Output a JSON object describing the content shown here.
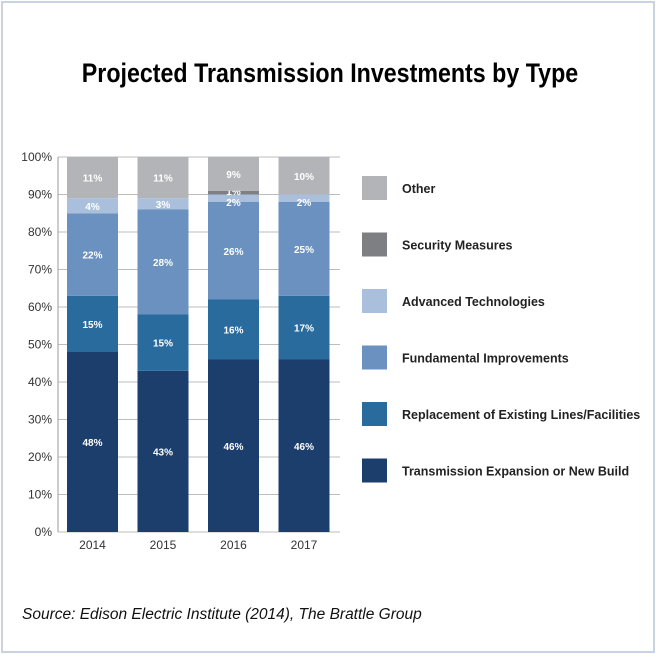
{
  "chart_data": {
    "type": "bar",
    "stacked": true,
    "title": "Projected Transmission Investments by Type",
    "xlabel": "",
    "ylabel": "",
    "ylim": [
      0,
      100
    ],
    "yticks": [
      "0%",
      "10%",
      "20%",
      "30%",
      "40%",
      "50%",
      "60%",
      "70%",
      "80%",
      "90%",
      "100%"
    ],
    "categories": [
      "2014",
      "2015",
      "2016",
      "2017"
    ],
    "series": [
      {
        "name": "Transmission Expansion or New Build",
        "color": "#1b3e6c",
        "values": [
          48,
          43,
          46,
          46
        ]
      },
      {
        "name": "Replacement of Existing Lines/Facilities",
        "color": "#2a6b9e",
        "values": [
          15,
          15,
          16,
          17
        ]
      },
      {
        "name": "Fundamental Improvements",
        "color": "#6a91bf",
        "values": [
          22,
          28,
          26,
          25
        ]
      },
      {
        "name": "Advanced Technologies",
        "color": "#a9bfdc",
        "values": [
          4,
          3,
          2,
          2
        ]
      },
      {
        "name": "Security Measures",
        "color": "#7e7f82",
        "values": [
          0,
          0,
          1,
          0
        ]
      },
      {
        "name": "Other",
        "color": "#b3b4b7",
        "values": [
          11,
          11,
          9,
          10
        ]
      }
    ],
    "grid": true,
    "legend": "right"
  },
  "source": "Source: Edison Electric Institute (2014), The Brattle Group"
}
